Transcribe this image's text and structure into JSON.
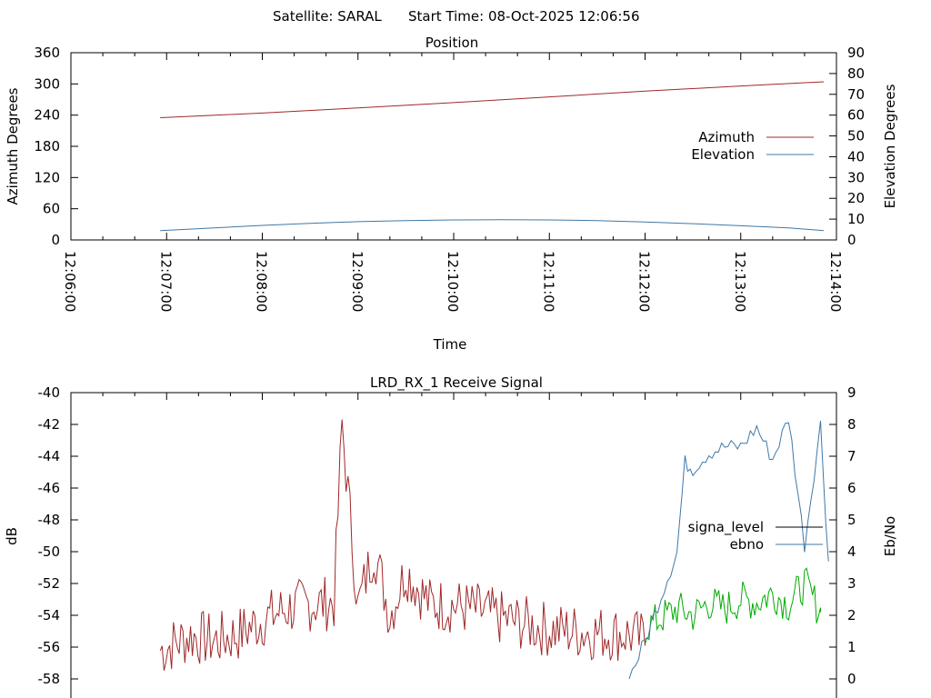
{
  "header": {
    "satellite": "Satellite: SARAL",
    "start_time": "Start Time: 08-Oct-2025 12:06:56"
  },
  "chart_data": [
    {
      "type": "line",
      "title": "Position",
      "xlabel": "Time",
      "ylabel": "Azimuth Degrees",
      "y2label": "Elevation Degrees",
      "x_ticks": [
        "12:06:00",
        "12:07:00",
        "12:08:00",
        "12:09:00",
        "12:10:00",
        "12:11:00",
        "12:12:00",
        "12:13:00",
        "12:14:00"
      ],
      "ylim": [
        0,
        360
      ],
      "y_ticks": [
        "0",
        "60",
        "120",
        "180",
        "240",
        "300",
        "360"
      ],
      "y2lim": [
        0,
        90
      ],
      "y2_ticks": [
        "0",
        "10",
        "20",
        "30",
        "40",
        "50",
        "60",
        "70",
        "80",
        "90"
      ],
      "grid": false,
      "legend_position": "right",
      "series": [
        {
          "name": "Azimuth",
          "axis": "y",
          "color": "#a0282a",
          "x": [
            "12:06:56",
            "12:08:00",
            "12:09:00",
            "12:10:00",
            "12:11:00",
            "12:12:00",
            "12:13:00",
            "12:13:52"
          ],
          "values": [
            235,
            244,
            254,
            264,
            275,
            286,
            296,
            304
          ]
        },
        {
          "name": "Elevation",
          "axis": "y2",
          "color": "#3f78a8",
          "x": [
            "12:06:56",
            "12:07:30",
            "12:08:00",
            "12:08:30",
            "12:09:00",
            "12:09:30",
            "12:10:00",
            "12:10:30",
            "12:11:00",
            "12:11:30",
            "12:12:00",
            "12:12:30",
            "12:13:00",
            "12:13:30",
            "12:13:52"
          ],
          "values": [
            4.5,
            5.8,
            7.0,
            8.0,
            8.8,
            9.3,
            9.6,
            9.7,
            9.6,
            9.3,
            8.6,
            7.8,
            6.8,
            5.8,
            4.5
          ]
        }
      ]
    },
    {
      "type": "line",
      "title": "LRD_RX_1 Receive Signal",
      "ylabel": "dB",
      "y2label": "Eb/No",
      "ylim": [
        -58,
        -40
      ],
      "y_ticks": [
        "-58",
        "-56",
        "-54",
        "-52",
        "-50",
        "-48",
        "-46",
        "-44",
        "-42",
        "-40"
      ],
      "y2lim": [
        0,
        9
      ],
      "y2_ticks": [
        "0",
        "1",
        "2",
        "3",
        "4",
        "5",
        "6",
        "7",
        "8",
        "9"
      ],
      "grid": false,
      "legend_position": "right",
      "legend": [
        {
          "name": "signa_level",
          "color": "#000000"
        },
        {
          "name": "ebno",
          "color": "#3f78a8"
        }
      ],
      "series": [
        {
          "name": "signa_level",
          "axis": "y",
          "color": "#a0282a",
          "x": [
            "12:06:56",
            "12:07:15",
            "12:07:30",
            "12:07:45",
            "12:08:00",
            "12:08:15",
            "12:08:30",
            "12:08:45",
            "12:08:50",
            "12:09:00",
            "12:09:10",
            "12:09:20",
            "12:09:30",
            "12:09:45",
            "12:10:00",
            "12:10:15",
            "12:10:30",
            "12:11:00",
            "12:11:30",
            "12:11:50",
            "12:12:00"
          ],
          "values": [
            -56.2,
            -55.3,
            -55.6,
            -55.2,
            -54.3,
            -53.6,
            -53.3,
            -53.2,
            -42.0,
            -53.5,
            -49.8,
            -54.0,
            -51.2,
            -53.3,
            -53.4,
            -53.7,
            -54.2,
            -54.9,
            -55.1,
            -55.2,
            -55.6
          ]
        },
        {
          "name": "signa_level (green)",
          "axis": "y",
          "color": "#00aa00",
          "x": [
            "12:12:00",
            "12:12:10",
            "12:12:20",
            "12:12:30",
            "12:12:40",
            "12:12:50",
            "12:13:00",
            "12:13:10",
            "12:13:20",
            "12:13:30",
            "12:13:40",
            "12:13:50"
          ],
          "values": [
            -54.8,
            -54.2,
            -53.6,
            -54.0,
            -53.2,
            -53.6,
            -53.0,
            -53.2,
            -52.6,
            -53.3,
            -52.0,
            -53.8
          ]
        },
        {
          "name": "ebno",
          "axis": "y2",
          "color": "#3f78a8",
          "x": [
            "12:11:50",
            "12:12:00",
            "12:12:10",
            "12:12:20",
            "12:12:25",
            "12:12:30",
            "12:12:40",
            "12:12:50",
            "12:13:00",
            "12:13:10",
            "12:13:20",
            "12:13:30",
            "12:13:40",
            "12:13:50",
            "12:13:55"
          ],
          "values": [
            0.0,
            1.2,
            2.6,
            4.0,
            6.8,
            6.6,
            7.1,
            7.3,
            7.3,
            7.9,
            6.9,
            8.2,
            4.2,
            8.0,
            3.7
          ]
        }
      ]
    }
  ]
}
